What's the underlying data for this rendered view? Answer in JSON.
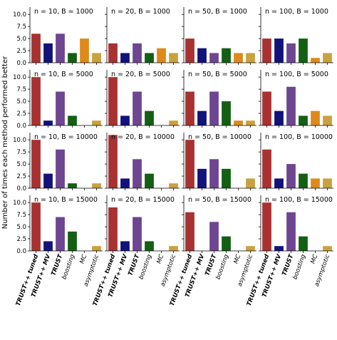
{
  "ylabel": "Number of times each method performed better",
  "chart_data": {
    "type": "bar",
    "layout": "4x4 small multiples, shared x and y axes",
    "categories": [
      "TRUST++ tuned",
      "TRUST++ MV",
      "TRUST",
      "boosting",
      "MC",
      "asymptotic"
    ],
    "bold_categories": [
      "TRUST++ tuned",
      "TRUST++ MV",
      "TRUST"
    ],
    "colors": [
      "#a83232",
      "#12127a",
      "#6e4591",
      "#135f13",
      "#de8a1b",
      "#c9a13e"
    ],
    "ylim": [
      0,
      11.5
    ],
    "yticks": [
      "0.0",
      "2.5",
      "5.0",
      "7.5",
      "10.0"
    ],
    "ytick_values": [
      0,
      2.5,
      5,
      7.5,
      10
    ],
    "grid": false,
    "panels": [
      {
        "title": "n = 10, B = 1000",
        "values": [
          6,
          4,
          6,
          2,
          5,
          2
        ]
      },
      {
        "title": "n = 20, B = 1000",
        "values": [
          4,
          2,
          4,
          2,
          3,
          2
        ]
      },
      {
        "title": "n = 50, B = 1000",
        "values": [
          5,
          3,
          2,
          3,
          2,
          2
        ]
      },
      {
        "title": "n = 100, B = 1000",
        "values": [
          5,
          5,
          4,
          5,
          1,
          2
        ]
      },
      {
        "title": "n = 10, B = 5000",
        "values": [
          10,
          1,
          7,
          2,
          0,
          1
        ]
      },
      {
        "title": "n = 20, B = 5000",
        "values": [
          10,
          2,
          7,
          3,
          0,
          1
        ]
      },
      {
        "title": "n = 50, B = 5000",
        "values": [
          7,
          3,
          7,
          5,
          1,
          1
        ]
      },
      {
        "title": "n = 100, B = 5000",
        "values": [
          7,
          3,
          8,
          2,
          3,
          2
        ]
      },
      {
        "title": "n = 10, B = 10000",
        "values": [
          10,
          3,
          8,
          1,
          0,
          1
        ]
      },
      {
        "title": "n = 20, B = 10000",
        "values": [
          11,
          2,
          6,
          3,
          0,
          1
        ]
      },
      {
        "title": "n = 50, B = 10000",
        "values": [
          10,
          4,
          6,
          4,
          0,
          2
        ]
      },
      {
        "title": "n = 100, B = 10000",
        "values": [
          8,
          2,
          5,
          3,
          2,
          2
        ]
      },
      {
        "title": "n = 10, B = 15000",
        "values": [
          10,
          2,
          7,
          4,
          0,
          1
        ]
      },
      {
        "title": "n = 20, B = 15000",
        "values": [
          9,
          2,
          7,
          2,
          0,
          1
        ]
      },
      {
        "title": "n = 50, B = 15000",
        "values": [
          8,
          0,
          6,
          3,
          0,
          1
        ]
      },
      {
        "title": "n = 100, B = 15000",
        "values": [
          10,
          1,
          8,
          3,
          0,
          1
        ]
      }
    ]
  }
}
